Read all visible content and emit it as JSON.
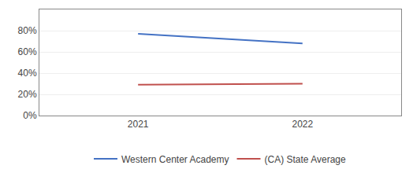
{
  "chart_data": {
    "type": "line",
    "x": [
      2021,
      2022
    ],
    "series": [
      {
        "name": "Western Center Academy",
        "color": "#4472C4",
        "values": [
          77,
          68
        ]
      },
      {
        "name": "(CA) State Average",
        "color": "#C0504D",
        "values": [
          29,
          30
        ]
      }
    ],
    "xlim": [
      2020.4,
      2022.6
    ],
    "xticks": [
      2021,
      2022
    ],
    "ylim": [
      0,
      100
    ],
    "yticks": [
      {
        "value": 0,
        "label": "0%"
      },
      {
        "value": 20,
        "label": "20%"
      },
      {
        "value": 40,
        "label": "40%"
      },
      {
        "value": 60,
        "label": "60%"
      },
      {
        "value": 80,
        "label": "80%"
      }
    ],
    "grid": true,
    "legend": "bottom"
  }
}
